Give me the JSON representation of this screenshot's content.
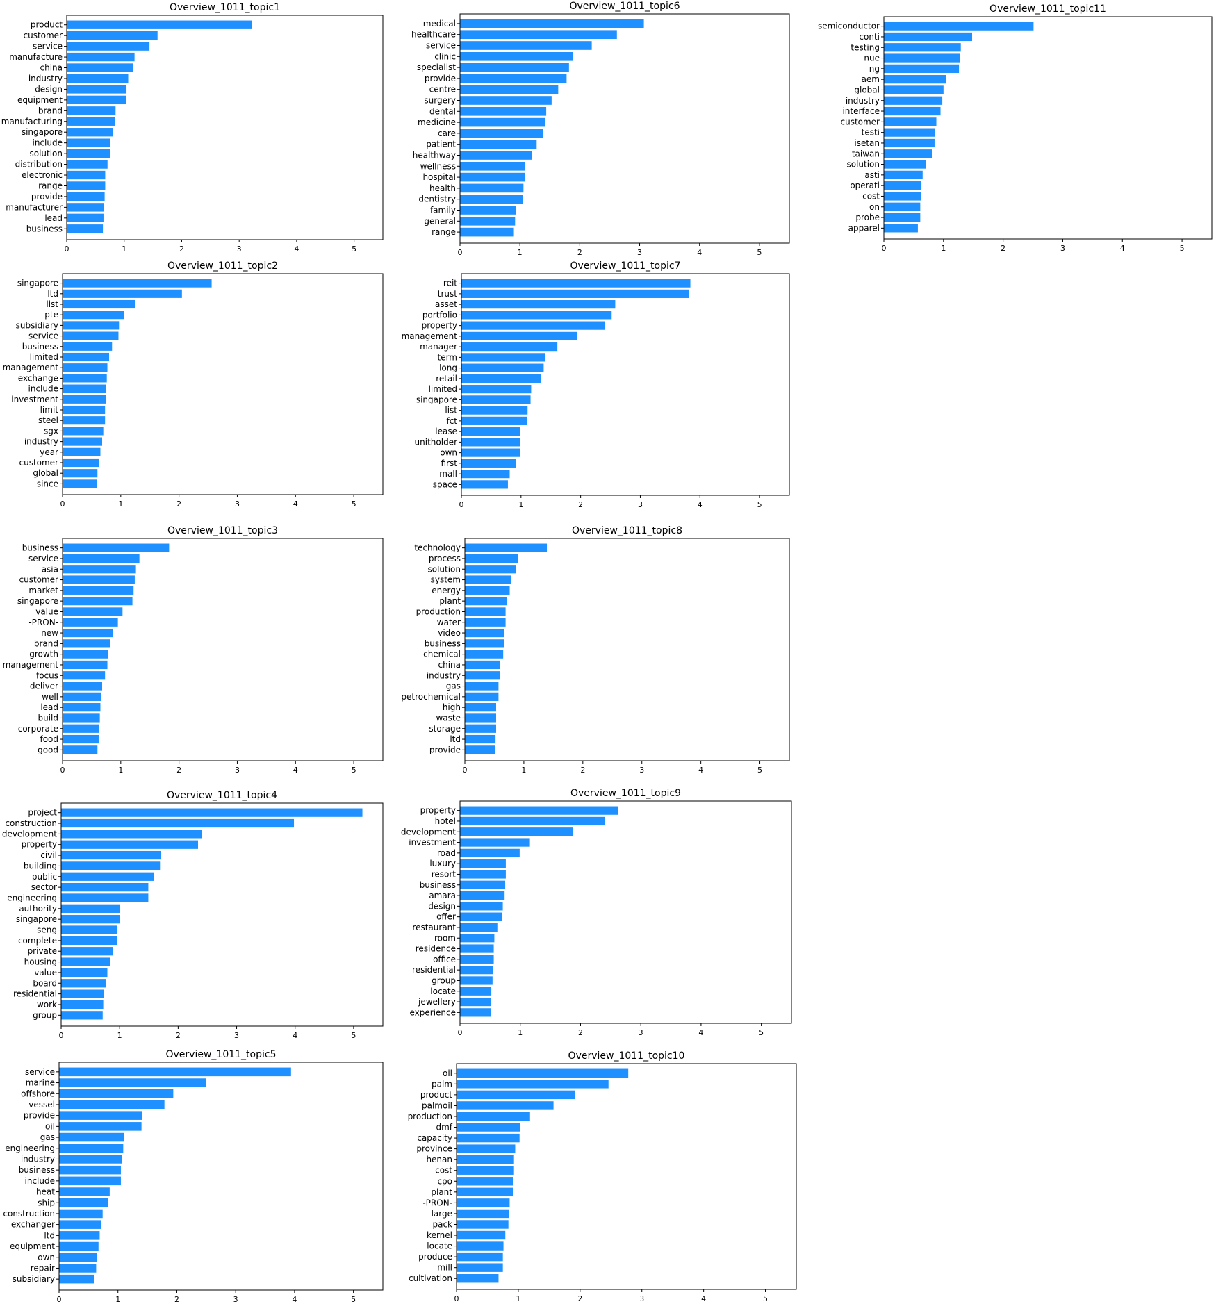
{
  "chart_data": [
    {
      "type": "bar",
      "orientation": "horizontal",
      "title": "Overview_1011_topic1",
      "xlim": [
        0,
        5.5
      ],
      "xticks": [
        0,
        1,
        2,
        3,
        4,
        5
      ],
      "categories": [
        "product",
        "customer",
        "service",
        "manufacture",
        "china",
        "industry",
        "design",
        "equipment",
        "brand",
        "manufacturing",
        "singapore",
        "include",
        "solution",
        "distribution",
        "electronic",
        "range",
        "provide",
        "manufacturer",
        "lead",
        "business"
      ],
      "values": [
        3.22,
        1.58,
        1.44,
        1.18,
        1.15,
        1.07,
        1.04,
        1.03,
        0.85,
        0.84,
        0.81,
        0.76,
        0.75,
        0.71,
        0.67,
        0.67,
        0.66,
        0.65,
        0.64,
        0.63
      ]
    },
    {
      "type": "bar",
      "orientation": "horizontal",
      "title": "Overview_1011_topic6",
      "xlim": [
        0,
        5.5
      ],
      "xticks": [
        0,
        1,
        2,
        3,
        4,
        5
      ],
      "categories": [
        "medical",
        "healthcare",
        "service",
        "clinic",
        "specialist",
        "provide",
        "centre",
        "surgery",
        "dental",
        "medicine",
        "care",
        "patient",
        "healthway",
        "wellness",
        "hospital",
        "health",
        "dentistry",
        "family",
        "general",
        "range"
      ],
      "values": [
        3.07,
        2.62,
        2.2,
        1.88,
        1.82,
        1.78,
        1.64,
        1.53,
        1.44,
        1.42,
        1.39,
        1.28,
        1.2,
        1.09,
        1.08,
        1.06,
        1.05,
        0.93,
        0.92,
        0.9
      ]
    },
    {
      "type": "bar",
      "orientation": "horizontal",
      "title": "Overview_1011_topic11",
      "xlim": [
        0,
        5.5
      ],
      "xticks": [
        0,
        1,
        2,
        3,
        4,
        5
      ],
      "categories": [
        "semiconductor",
        "conti",
        "testing",
        "nue",
        "ng",
        "aem",
        "global",
        "industry",
        "interface",
        "customer",
        "testi",
        "isetan",
        "taiwan",
        "solution",
        "asti",
        "operati",
        "cost",
        "on",
        "probe",
        "apparel"
      ],
      "values": [
        2.51,
        1.48,
        1.29,
        1.28,
        1.26,
        1.04,
        1.0,
        0.98,
        0.95,
        0.88,
        0.86,
        0.85,
        0.81,
        0.7,
        0.65,
        0.63,
        0.62,
        0.61,
        0.61,
        0.57
      ]
    },
    {
      "type": "bar",
      "orientation": "horizontal",
      "title": "Overview_1011_topic2",
      "xlim": [
        0,
        5.5
      ],
      "xticks": [
        0,
        1,
        2,
        3,
        4,
        5
      ],
      "categories": [
        "singapore",
        "ltd",
        "list",
        "pte",
        "subsidiary",
        "service",
        "business",
        "limited",
        "management",
        "exchange",
        "include",
        "investment",
        "limit",
        "steel",
        "sgx",
        "industry",
        "year",
        "customer",
        "global",
        "since"
      ],
      "values": [
        2.56,
        2.05,
        1.25,
        1.06,
        0.97,
        0.96,
        0.85,
        0.8,
        0.77,
        0.76,
        0.74,
        0.74,
        0.73,
        0.73,
        0.7,
        0.68,
        0.65,
        0.63,
        0.6,
        0.59
      ]
    },
    {
      "type": "bar",
      "orientation": "horizontal",
      "title": "Overview_1011_topic7",
      "xlim": [
        0,
        5.5
      ],
      "xticks": [
        0,
        1,
        2,
        3,
        4,
        5
      ],
      "categories": [
        "reit",
        "trust",
        "asset",
        "portfolio",
        "property",
        "management",
        "manager",
        "term",
        "long",
        "retail",
        "limited",
        "singapore",
        "list",
        "fct",
        "lease",
        "unitholder",
        "own",
        "first",
        "mall",
        "space"
      ],
      "values": [
        3.84,
        3.82,
        2.58,
        2.52,
        2.41,
        1.94,
        1.61,
        1.4,
        1.38,
        1.33,
        1.17,
        1.16,
        1.11,
        1.1,
        0.99,
        0.99,
        0.98,
        0.92,
        0.81,
        0.78
      ]
    },
    {
      "type": "bar",
      "orientation": "horizontal",
      "title": "Overview_1011_topic3",
      "xlim": [
        0,
        5.5
      ],
      "xticks": [
        0,
        1,
        2,
        3,
        4,
        5
      ],
      "categories": [
        "business",
        "service",
        "asia",
        "customer",
        "market",
        "singapore",
        "value",
        "-PRON-",
        "new",
        "brand",
        "growth",
        "management",
        "focus",
        "deliver",
        "well",
        "lead",
        "build",
        "corporate",
        "food",
        "good"
      ],
      "values": [
        1.83,
        1.32,
        1.26,
        1.24,
        1.22,
        1.2,
        1.03,
        0.95,
        0.87,
        0.82,
        0.78,
        0.77,
        0.73,
        0.68,
        0.66,
        0.65,
        0.64,
        0.63,
        0.62,
        0.6
      ]
    },
    {
      "type": "bar",
      "orientation": "horizontal",
      "title": "Overview_1011_topic8",
      "xlim": [
        0,
        5.5
      ],
      "xticks": [
        0,
        1,
        2,
        3,
        4,
        5
      ],
      "categories": [
        "technology",
        "process",
        "solution",
        "system",
        "energy",
        "plant",
        "production",
        "water",
        "video",
        "business",
        "chemical",
        "china",
        "industry",
        "gas",
        "petrochemical",
        "high",
        "waste",
        "storage",
        "ltd",
        "provide"
      ],
      "values": [
        1.39,
        0.9,
        0.86,
        0.78,
        0.76,
        0.71,
        0.69,
        0.69,
        0.67,
        0.66,
        0.65,
        0.6,
        0.6,
        0.57,
        0.57,
        0.53,
        0.53,
        0.53,
        0.52,
        0.51
      ]
    },
    {
      "type": "bar",
      "orientation": "horizontal",
      "title": "Overview_1011_topic4",
      "xlim": [
        0,
        5.5
      ],
      "xticks": [
        0,
        1,
        2,
        3,
        4,
        5
      ],
      "categories": [
        "project",
        "construction",
        "development",
        "property",
        "civil",
        "building",
        "public",
        "sector",
        "engineering",
        "authority",
        "singapore",
        "seng",
        "complete",
        "private",
        "housing",
        "value",
        "board",
        "residential",
        "work",
        "group"
      ],
      "values": [
        5.15,
        3.98,
        2.4,
        2.34,
        1.7,
        1.69,
        1.58,
        1.49,
        1.49,
        1.01,
        1.0,
        0.96,
        0.96,
        0.88,
        0.84,
        0.79,
        0.76,
        0.73,
        0.72,
        0.71
      ]
    },
    {
      "type": "bar",
      "orientation": "horizontal",
      "title": "Overview_1011_topic9",
      "xlim": [
        0,
        5.5
      ],
      "xticks": [
        0,
        1,
        2,
        3,
        4,
        5
      ],
      "categories": [
        "property",
        "hotel",
        "development",
        "investment",
        "road",
        "luxury",
        "resort",
        "business",
        "amara",
        "design",
        "offer",
        "restaurant",
        "room",
        "residence",
        "office",
        "residential",
        "group",
        "locate",
        "jewellery",
        "experience"
      ],
      "values": [
        2.62,
        2.41,
        1.88,
        1.16,
        0.99,
        0.76,
        0.76,
        0.75,
        0.74,
        0.71,
        0.7,
        0.62,
        0.57,
        0.56,
        0.56,
        0.55,
        0.54,
        0.52,
        0.51,
        0.51
      ]
    },
    {
      "type": "bar",
      "orientation": "horizontal",
      "title": "Overview_1011_topic5",
      "xlim": [
        0,
        5.5
      ],
      "xticks": [
        0,
        1,
        2,
        3,
        4,
        5
      ],
      "categories": [
        "service",
        "marine",
        "offshore",
        "vessel",
        "provide",
        "oil",
        "gas",
        "engineering",
        "industry",
        "business",
        "include",
        "heat",
        "ship",
        "construction",
        "exchanger",
        "ltd",
        "equipment",
        "own",
        "repair",
        "subsidiary"
      ],
      "values": [
        3.94,
        2.5,
        1.94,
        1.79,
        1.41,
        1.4,
        1.1,
        1.09,
        1.07,
        1.05,
        1.05,
        0.86,
        0.83,
        0.74,
        0.72,
        0.69,
        0.67,
        0.64,
        0.63,
        0.59
      ]
    },
    {
      "type": "bar",
      "orientation": "horizontal",
      "title": "Overview_1011_topic10",
      "xlim": [
        0,
        5.5
      ],
      "xticks": [
        0,
        1,
        2,
        3,
        4,
        5
      ],
      "categories": [
        "oil",
        "palm",
        "product",
        "palmoil",
        "production",
        "dmf",
        "capacity",
        "province",
        "henan",
        "cost",
        "cpo",
        "plant",
        "-PRON-",
        "large",
        "pack",
        "kernel",
        "locate",
        "produce",
        "mill",
        "cultivation"
      ],
      "values": [
        2.78,
        2.46,
        1.92,
        1.57,
        1.19,
        1.03,
        1.02,
        0.95,
        0.93,
        0.93,
        0.92,
        0.92,
        0.86,
        0.85,
        0.84,
        0.79,
        0.76,
        0.75,
        0.75,
        0.68
      ]
    }
  ]
}
